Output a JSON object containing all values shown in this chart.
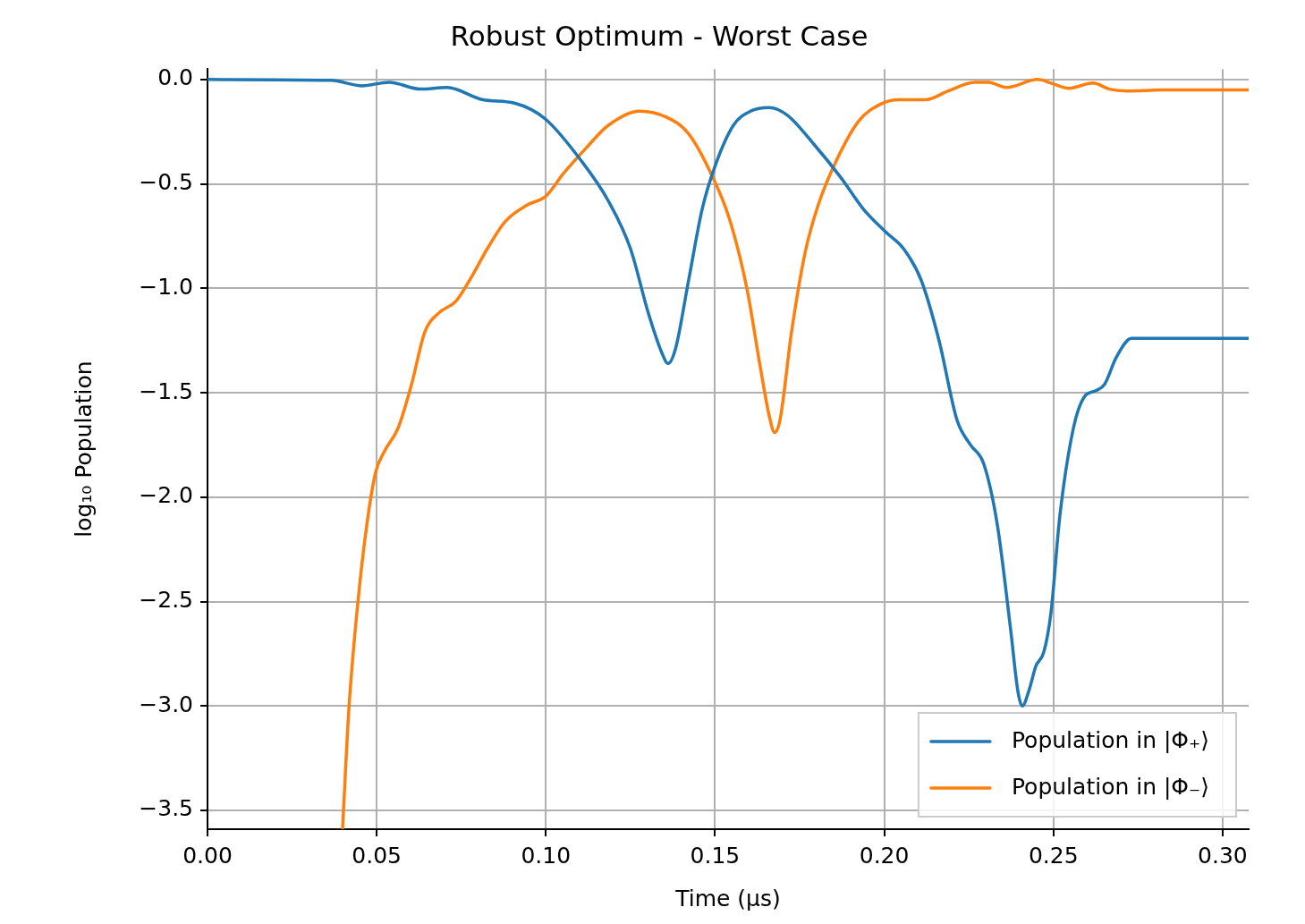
{
  "chart_data": {
    "type": "line",
    "title": "Robust Optimum - Worst Case",
    "xlabel": "Time (μs)",
    "ylabel": "log₁₀ Population",
    "xlim": [
      0,
      0.3077
    ],
    "ylim": [
      -3.59,
      0.05
    ],
    "xticks": [
      {
        "value": 0,
        "label": "0.00"
      },
      {
        "value": 0.05,
        "label": "0.05"
      },
      {
        "value": 0.1,
        "label": "0.10"
      },
      {
        "value": 0.15,
        "label": "0.15"
      },
      {
        "value": 0.2,
        "label": "0.20"
      },
      {
        "value": 0.25,
        "label": "0.25"
      },
      {
        "value": 0.3,
        "label": "0.30"
      }
    ],
    "yticks": [
      {
        "value": 0,
        "label": "0.0"
      },
      {
        "value": -0.5,
        "label": "−0.5"
      },
      {
        "value": -1,
        "label": "−1.0"
      },
      {
        "value": -1.5,
        "label": "−1.5"
      },
      {
        "value": -2,
        "label": "−2.0"
      },
      {
        "value": -2.5,
        "label": "−2.5"
      },
      {
        "value": -3,
        "label": "−3.0"
      },
      {
        "value": -3.5,
        "label": "−3.5"
      }
    ],
    "grid": true,
    "legend": "bottom right",
    "marker": "none",
    "line_style": "solid",
    "series": [
      {
        "name": "Population in |Φ₊⟩",
        "color": "#1f77b4",
        "x": [
          0,
          0.0365,
          0.0457,
          0.0537,
          0.0629,
          0.0708,
          0.0814,
          0.0907,
          0.0999,
          0.1105,
          0.1184,
          0.125,
          0.1303,
          0.1343,
          0.1361,
          0.1383,
          0.1422,
          0.1462,
          0.1501,
          0.1554,
          0.1607,
          0.166,
          0.1713,
          0.1792,
          0.1872,
          0.1938,
          0.2004,
          0.2057,
          0.2109,
          0.2162,
          0.2215,
          0.2255,
          0.2294,
          0.2334,
          0.2374,
          0.2395,
          0.2408,
          0.2427,
          0.2448,
          0.2472,
          0.2493,
          0.2519,
          0.2559,
          0.2591,
          0.2625,
          0.2651,
          0.2686,
          0.2731,
          0.2823,
          0.3077
        ],
        "values": [
          0,
          -0.004,
          -0.03,
          -0.013,
          -0.046,
          -0.038,
          -0.097,
          -0.113,
          -0.19,
          -0.39,
          -0.58,
          -0.81,
          -1.12,
          -1.31,
          -1.36,
          -1.29,
          -0.96,
          -0.62,
          -0.41,
          -0.22,
          -0.15,
          -0.134,
          -0.17,
          -0.31,
          -0.47,
          -0.62,
          -0.73,
          -0.81,
          -0.96,
          -1.25,
          -1.63,
          -1.75,
          -1.84,
          -2.13,
          -2.64,
          -2.93,
          -3.0,
          -2.93,
          -2.81,
          -2.74,
          -2.55,
          -2.09,
          -1.67,
          -1.52,
          -1.49,
          -1.46,
          -1.33,
          -1.24,
          -1.24,
          -1.24
        ]
      },
      {
        "name": "Population in |Φ₋⟩",
        "color": "#ff7f0e",
        "x": [
          0.0399,
          0.0418,
          0.0444,
          0.0471,
          0.0497,
          0.0523,
          0.0563,
          0.0603,
          0.0642,
          0.0682,
          0.0735,
          0.0775,
          0.0827,
          0.088,
          0.0946,
          0.0999,
          0.1052,
          0.1118,
          0.1184,
          0.1277,
          0.1356,
          0.1422,
          0.1488,
          0.1541,
          0.1594,
          0.1634,
          0.166,
          0.1676,
          0.1692,
          0.1726,
          0.1766,
          0.1805,
          0.1858,
          0.1924,
          0.1991,
          0.2043,
          0.2123,
          0.2189,
          0.2268,
          0.2308,
          0.2361,
          0.2453,
          0.2493,
          0.2546,
          0.2617,
          0.2665,
          0.2717,
          0.2823,
          0.3077
        ],
        "values": [
          -3.59,
          -3.01,
          -2.51,
          -2.13,
          -1.88,
          -1.78,
          -1.67,
          -1.46,
          -1.21,
          -1.12,
          -1.06,
          -0.96,
          -0.81,
          -0.68,
          -0.6,
          -0.56,
          -0.45,
          -0.33,
          -0.22,
          -0.151,
          -0.18,
          -0.26,
          -0.45,
          -0.66,
          -1.0,
          -1.38,
          -1.61,
          -1.69,
          -1.63,
          -1.21,
          -0.83,
          -0.6,
          -0.39,
          -0.2,
          -0.117,
          -0.097,
          -0.097,
          -0.055,
          -0.013,
          -0.013,
          -0.038,
          0.0,
          -0.017,
          -0.042,
          -0.017,
          -0.046,
          -0.055,
          -0.05,
          -0.05
        ]
      }
    ]
  }
}
